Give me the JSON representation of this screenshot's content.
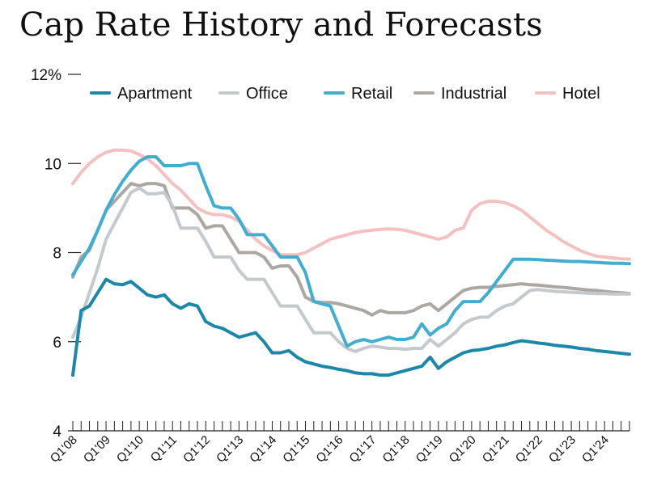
{
  "chart_data": {
    "type": "line",
    "title": "Cap Rate History and Forecasts",
    "ylabel": "",
    "xlabel": "",
    "ylim": [
      4,
      12
    ],
    "y_ticks": [
      {
        "value": 4,
        "label": "4"
      },
      {
        "value": 6,
        "label": "6"
      },
      {
        "value": 8,
        "label": "8"
      },
      {
        "value": 10,
        "label": "10"
      },
      {
        "value": 12,
        "label": "12%"
      }
    ],
    "x_start": "Q1'08",
    "x_end": "Q4'24",
    "quarters": 68,
    "x_tick_labels": [
      {
        "index": 0,
        "label": "Q1'08"
      },
      {
        "index": 4,
        "label": "Q1'09"
      },
      {
        "index": 8,
        "label": "Q1'10"
      },
      {
        "index": 12,
        "label": "Q1'11"
      },
      {
        "index": 16,
        "label": "Q1'12"
      },
      {
        "index": 20,
        "label": "Q1'13"
      },
      {
        "index": 24,
        "label": "Q1'14"
      },
      {
        "index": 28,
        "label": "Q1'15"
      },
      {
        "index": 32,
        "label": "Q1'16"
      },
      {
        "index": 36,
        "label": "Q1'17"
      },
      {
        "index": 40,
        "label": "Q1'18"
      },
      {
        "index": 44,
        "label": "Q1'19"
      },
      {
        "index": 48,
        "label": "Q1'20"
      },
      {
        "index": 52,
        "label": "Q1'21"
      },
      {
        "index": 56,
        "label": "Q1'22"
      },
      {
        "index": 60,
        "label": "Q1'23"
      },
      {
        "index": 64,
        "label": "Q1'24"
      }
    ],
    "series": [
      {
        "name": "Apartment",
        "color": "#1c87a8",
        "values": [
          5.25,
          6.7,
          6.8,
          7.1,
          7.4,
          7.3,
          7.28,
          7.35,
          7.2,
          7.05,
          7.0,
          7.05,
          6.85,
          6.75,
          6.85,
          6.8,
          6.45,
          6.35,
          6.3,
          6.2,
          6.1,
          6.15,
          6.2,
          6.0,
          5.75,
          5.75,
          5.8,
          5.65,
          5.55,
          5.5,
          5.45,
          5.42,
          5.38,
          5.35,
          5.3,
          5.28,
          5.28,
          5.25,
          5.25,
          5.3,
          5.35,
          5.4,
          5.45,
          5.65,
          5.4,
          5.55,
          5.65,
          5.75,
          5.8,
          5.82,
          5.85,
          5.9,
          5.93,
          5.98,
          6.02,
          6.0,
          5.97,
          5.95,
          5.92,
          5.9,
          5.88,
          5.85,
          5.83,
          5.8,
          5.78,
          5.76,
          5.74,
          5.72
        ]
      },
      {
        "name": "Office",
        "color": "#c4c9cd",
        "values": [
          6.1,
          6.55,
          7.1,
          7.65,
          8.3,
          8.65,
          9.0,
          9.35,
          9.45,
          9.32,
          9.32,
          9.35,
          9.05,
          8.55,
          8.55,
          8.55,
          8.25,
          7.9,
          7.9,
          7.9,
          7.6,
          7.4,
          7.4,
          7.4,
          7.1,
          6.8,
          6.8,
          6.8,
          6.5,
          6.2,
          6.2,
          6.2,
          6.0,
          5.85,
          5.78,
          5.85,
          5.9,
          5.88,
          5.85,
          5.85,
          5.83,
          5.85,
          5.85,
          6.05,
          5.9,
          6.05,
          6.2,
          6.4,
          6.5,
          6.55,
          6.55,
          6.7,
          6.8,
          6.85,
          7.0,
          7.15,
          7.17,
          7.15,
          7.13,
          7.12,
          7.11,
          7.1,
          7.09,
          7.08,
          7.08,
          7.07,
          7.07,
          7.07
        ]
      },
      {
        "name": "Retail",
        "color": "#42aecf",
        "values": [
          7.5,
          7.8,
          8.1,
          8.5,
          8.95,
          9.3,
          9.6,
          9.85,
          10.05,
          10.15,
          10.15,
          9.95,
          9.95,
          9.95,
          10.0,
          10.0,
          9.5,
          9.05,
          9.0,
          9.0,
          8.75,
          8.4,
          8.4,
          8.4,
          8.15,
          7.9,
          7.9,
          7.9,
          7.55,
          6.9,
          6.85,
          6.8,
          6.35,
          5.9,
          6.0,
          6.05,
          6.0,
          6.05,
          6.1,
          6.05,
          6.05,
          6.1,
          6.4,
          6.15,
          6.3,
          6.4,
          6.7,
          6.9,
          6.9,
          6.9,
          7.1,
          7.35,
          7.6,
          7.85,
          7.85,
          7.85,
          7.84,
          7.83,
          7.82,
          7.81,
          7.8,
          7.8,
          7.79,
          7.78,
          7.77,
          7.76,
          7.76,
          7.75
        ]
      },
      {
        "name": "Industrial",
        "color": "#ada7a4",
        "values": [
          7.45,
          7.9,
          8.05,
          8.5,
          8.95,
          9.15,
          9.35,
          9.55,
          9.5,
          9.55,
          9.55,
          9.5,
          9.0,
          9.0,
          9.0,
          8.85,
          8.55,
          8.6,
          8.6,
          8.3,
          8.0,
          8.0,
          8.0,
          7.9,
          7.65,
          7.7,
          7.7,
          7.45,
          7.0,
          6.9,
          6.88,
          6.88,
          6.85,
          6.8,
          6.75,
          6.7,
          6.6,
          6.7,
          6.65,
          6.65,
          6.65,
          6.7,
          6.8,
          6.85,
          6.7,
          6.85,
          7.0,
          7.15,
          7.2,
          7.22,
          7.22,
          7.24,
          7.26,
          7.28,
          7.3,
          7.28,
          7.27,
          7.25,
          7.23,
          7.22,
          7.2,
          7.18,
          7.16,
          7.15,
          7.13,
          7.11,
          7.1,
          7.08
        ]
      },
      {
        "name": "Hotel",
        "color": "#f4c0c0",
        "values": [
          9.55,
          9.8,
          10.0,
          10.15,
          10.25,
          10.3,
          10.3,
          10.28,
          10.2,
          10.1,
          9.95,
          9.75,
          9.55,
          9.4,
          9.2,
          9.0,
          8.9,
          8.85,
          8.85,
          8.8,
          8.7,
          8.5,
          8.3,
          8.15,
          8.05,
          7.95,
          7.95,
          7.95,
          8.0,
          8.1,
          8.2,
          8.3,
          8.35,
          8.4,
          8.45,
          8.48,
          8.5,
          8.52,
          8.53,
          8.52,
          8.5,
          8.45,
          8.4,
          8.35,
          8.3,
          8.35,
          8.5,
          8.55,
          8.95,
          9.1,
          9.15,
          9.15,
          9.12,
          9.05,
          8.95,
          8.8,
          8.65,
          8.5,
          8.38,
          8.25,
          8.15,
          8.05,
          7.98,
          7.92,
          7.9,
          7.88,
          7.86,
          7.85
        ]
      }
    ],
    "legend": {
      "position": "top",
      "labels": [
        "Apartment",
        "Office",
        "Retail",
        "Industrial",
        "Hotel"
      ]
    }
  }
}
